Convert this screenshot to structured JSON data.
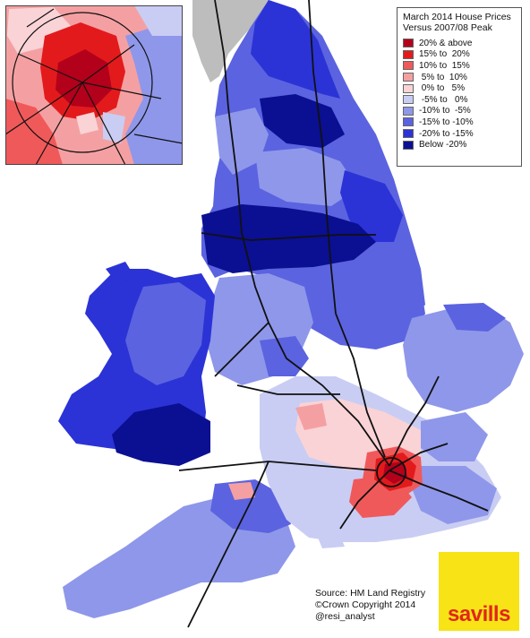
{
  "legend": {
    "title_line1": "March 2014 House Prices",
    "title_line2": "Versus 2007/08 Peak",
    "items": [
      {
        "label": "20% & above",
        "color": "#b3001b"
      },
      {
        "label": "15% to  20%",
        "color": "#e31a1c"
      },
      {
        "label": "10% to  15%",
        "color": "#f0595a"
      },
      {
        "label": " 5% to  10%",
        "color": "#f4a0a2"
      },
      {
        "label": " 0% to   5%",
        "color": "#f9d3d6"
      },
      {
        "label": " -5% to   0%",
        "color": "#c9cdf3"
      },
      {
        "label": "-10% to  -5%",
        "color": "#8f97ea"
      },
      {
        "label": "-15% to -10%",
        "color": "#5b63e0"
      },
      {
        "label": "-20% to -15%",
        "color": "#2b33d6"
      },
      {
        "label": "Below -20%",
        "color": "#0b0f92"
      }
    ]
  },
  "source": {
    "line1": "Source: HM Land Registry",
    "line2": "©Crown Copyright 2014",
    "line3": "@resi_analyst"
  },
  "logo": {
    "text": "savills",
    "background": "#f7e316",
    "text_color": "#e1261c"
  },
  "map": {
    "sea_color": "#ffffff",
    "land_other_color": "#bdbdbd",
    "road_color": "#111111"
  }
}
